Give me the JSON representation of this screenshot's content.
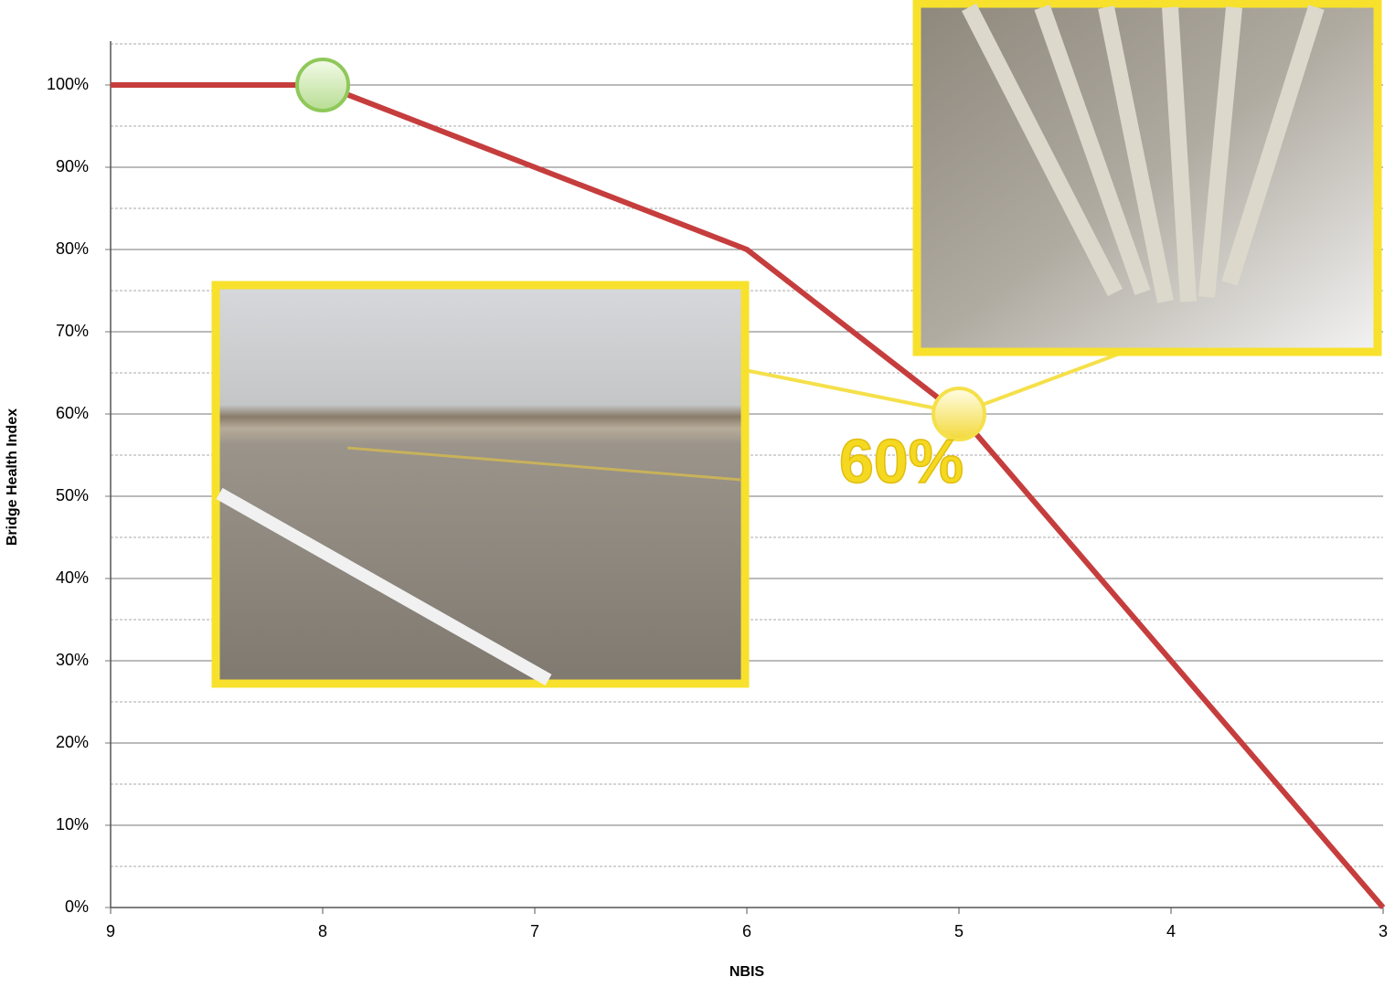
{
  "chart_data": {
    "type": "line",
    "x_label": "NBIS",
    "y_label": "Bridge Health Index",
    "x": [
      9,
      8,
      7,
      6,
      5,
      4,
      3
    ],
    "series": [
      {
        "color": "#c63d3d",
        "values": [
          100,
          100,
          90,
          80,
          60,
          30,
          0
        ]
      }
    ],
    "xlim": [
      9,
      3
    ],
    "xticks": [
      9,
      8,
      7,
      6,
      5,
      4,
      3
    ],
    "ylim": [
      0,
      100
    ],
    "yticks": [
      {
        "value": 0,
        "label": "0%"
      },
      {
        "value": 10,
        "label": "10%"
      },
      {
        "value": 20,
        "label": "20%"
      },
      {
        "value": 30,
        "label": "30%"
      },
      {
        "value": 40,
        "label": "40%"
      },
      {
        "value": 50,
        "label": "50%"
      },
      {
        "value": 60,
        "label": "60%"
      },
      {
        "value": 70,
        "label": "70%"
      },
      {
        "value": 80,
        "label": "80%"
      },
      {
        "value": 90,
        "label": "90%"
      },
      {
        "value": 100,
        "label": "100%"
      }
    ],
    "minor_yticks": [
      5,
      15,
      25,
      35,
      45,
      55,
      65,
      75,
      85,
      95,
      105
    ],
    "grid": true,
    "markers": [
      {
        "x": 8,
        "y": 100,
        "color": "#8fc85a"
      },
      {
        "x": 5,
        "y": 60,
        "color": "#f5e04a"
      }
    ],
    "annotations": [
      {
        "x": 5,
        "y": 60,
        "label": "60%",
        "color": "#f5d820"
      }
    ]
  }
}
